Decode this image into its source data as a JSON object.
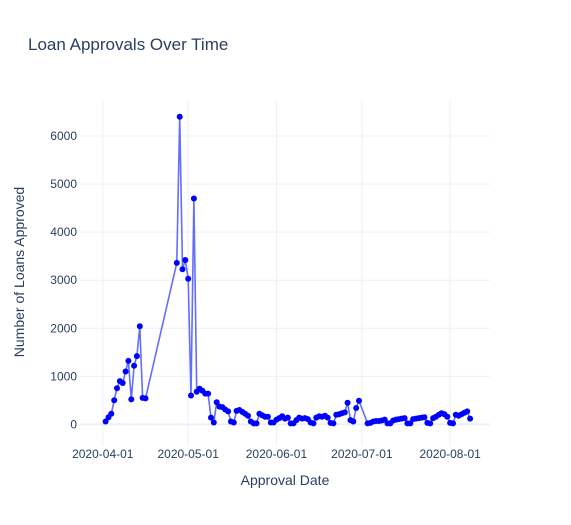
{
  "chart_data": {
    "type": "line",
    "title": "Loan Approvals Over Time",
    "xlabel": "Approval Date",
    "ylabel": "Number of Loans Approved",
    "x_ticks": [
      "2020-04-01",
      "2020-05-01",
      "2020-06-01",
      "2020-07-01",
      "2020-08-01"
    ],
    "y_ticks": [
      0,
      1000,
      2000,
      3000,
      4000,
      5000,
      6000
    ],
    "xlim": [
      "2020-03-24",
      "2020-08-15"
    ],
    "ylim": [
      -450,
      6750
    ],
    "grid": true,
    "line_color": "#636efa",
    "marker_color": "#0000ff",
    "series": [
      {
        "x": [
          "2020-04-02",
          "2020-04-03",
          "2020-04-04",
          "2020-04-05",
          "2020-04-06",
          "2020-04-07",
          "2020-04-08",
          "2020-04-09",
          "2020-04-10",
          "2020-04-11",
          "2020-04-12",
          "2020-04-13",
          "2020-04-14",
          "2020-04-15",
          "2020-04-16",
          "2020-04-27",
          "2020-04-28",
          "2020-04-29",
          "2020-04-30",
          "2020-05-01",
          "2020-05-02",
          "2020-05-03",
          "2020-05-04",
          "2020-05-05",
          "2020-05-06",
          "2020-05-07",
          "2020-05-08",
          "2020-05-09",
          "2020-05-10",
          "2020-05-11",
          "2020-05-12",
          "2020-05-13",
          "2020-05-14",
          "2020-05-15",
          "2020-05-16",
          "2020-05-17",
          "2020-05-18",
          "2020-05-19",
          "2020-05-20",
          "2020-05-21",
          "2020-05-22",
          "2020-05-23",
          "2020-05-24",
          "2020-05-25",
          "2020-05-26",
          "2020-05-27",
          "2020-05-28",
          "2020-05-29",
          "2020-05-30",
          "2020-05-31",
          "2020-06-01",
          "2020-06-02",
          "2020-06-03",
          "2020-06-04",
          "2020-06-05",
          "2020-06-06",
          "2020-06-07",
          "2020-06-08",
          "2020-06-09",
          "2020-06-10",
          "2020-06-11",
          "2020-06-12",
          "2020-06-13",
          "2020-06-14",
          "2020-06-15",
          "2020-06-16",
          "2020-06-17",
          "2020-06-18",
          "2020-06-19",
          "2020-06-20",
          "2020-06-21",
          "2020-06-22",
          "2020-06-23",
          "2020-06-24",
          "2020-06-25",
          "2020-06-26",
          "2020-06-27",
          "2020-06-28",
          "2020-06-29",
          "2020-06-30",
          "2020-07-03",
          "2020-07-04",
          "2020-07-05",
          "2020-07-06",
          "2020-07-07",
          "2020-07-08",
          "2020-07-09",
          "2020-07-10",
          "2020-07-11",
          "2020-07-12",
          "2020-07-13",
          "2020-07-14",
          "2020-07-15",
          "2020-07-16",
          "2020-07-17",
          "2020-07-18",
          "2020-07-19",
          "2020-07-20",
          "2020-07-21",
          "2020-07-22",
          "2020-07-23",
          "2020-07-24",
          "2020-07-25",
          "2020-07-26",
          "2020-07-27",
          "2020-07-28",
          "2020-07-29",
          "2020-07-30",
          "2020-07-31",
          "2020-08-01",
          "2020-08-02",
          "2020-08-03",
          "2020-08-04",
          "2020-08-05",
          "2020-08-06",
          "2020-08-07",
          "2020-08-08"
        ],
        "y": [
          60,
          150,
          220,
          500,
          750,
          900,
          860,
          1100,
          1320,
          520,
          1220,
          1420,
          2040,
          550,
          540,
          3360,
          6400,
          3230,
          3420,
          3030,
          600,
          4700,
          680,
          740,
          700,
          640,
          640,
          140,
          40,
          460,
          370,
          360,
          310,
          270,
          60,
          40,
          280,
          300,
          260,
          220,
          180,
          60,
          20,
          20,
          220,
          190,
          160,
          160,
          40,
          40,
          100,
          130,
          170,
          120,
          140,
          20,
          20,
          90,
          140,
          120,
          130,
          110,
          40,
          20,
          140,
          170,
          160,
          180,
          140,
          30,
          20,
          200,
          210,
          230,
          250,
          450,
          90,
          60,
          340,
          490,
          20,
          30,
          60,
          70,
          70,
          80,
          100,
          20,
          20,
          80,
          100,
          110,
          120,
          130,
          20,
          20,
          110,
          120,
          130,
          140,
          150,
          30,
          20,
          130,
          160,
          200,
          230,
          210,
          160,
          30,
          20,
          200,
          180,
          210,
          240,
          270,
          120
        ]
      }
    ]
  }
}
